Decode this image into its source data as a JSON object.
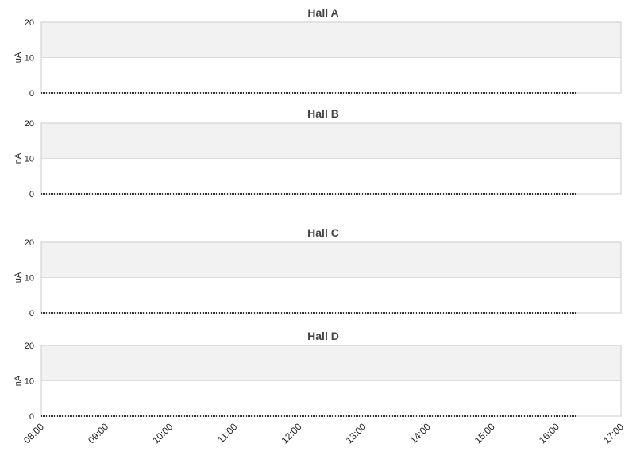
{
  "chart_data": [
    {
      "type": "line",
      "title": "Hall A",
      "ylabel": "uA",
      "ylim": [
        0,
        20
      ],
      "yticks": [
        "0",
        "10",
        "20"
      ],
      "band": [
        10,
        20
      ],
      "xlim": [
        "08:00",
        "17:00"
      ],
      "series": [
        {
          "x_start": "08:00",
          "x_end": "16:20",
          "value": 0
        }
      ]
    },
    {
      "type": "line",
      "title": "Hall B",
      "ylabel": "nA",
      "ylim": [
        0,
        20
      ],
      "yticks": [
        "0",
        "10",
        "20"
      ],
      "band": [
        10,
        20
      ],
      "xlim": [
        "08:00",
        "17:00"
      ],
      "series": [
        {
          "x_start": "08:00",
          "x_end": "16:20",
          "value": 0
        }
      ]
    },
    {
      "type": "line",
      "title": "Hall C",
      "ylabel": "uA",
      "ylim": [
        0,
        20
      ],
      "yticks": [
        "0",
        "10",
        "20"
      ],
      "band": [
        10,
        20
      ],
      "xlim": [
        "08:00",
        "17:00"
      ],
      "series": [
        {
          "x_start": "08:00",
          "x_end": "16:20",
          "value": 0
        }
      ]
    },
    {
      "type": "line",
      "title": "Hall D",
      "ylabel": "nA",
      "ylim": [
        0,
        20
      ],
      "yticks": [
        "0",
        "10",
        "20"
      ],
      "band": [
        10,
        20
      ],
      "xlim": [
        "08:00",
        "17:00"
      ],
      "series": [
        {
          "x_start": "08:00",
          "x_end": "16:20",
          "value": 0
        }
      ]
    }
  ],
  "x_axis": {
    "ticks": [
      "08:00",
      "09:00",
      "10:00",
      "11:00",
      "12:00",
      "13:00",
      "14:00",
      "15:00",
      "16:00",
      "17:00"
    ]
  },
  "colors": {
    "band": "#f2f2f2",
    "plot_border": "#cccccc",
    "grid": "#dddddd",
    "series_line": "#333333"
  }
}
